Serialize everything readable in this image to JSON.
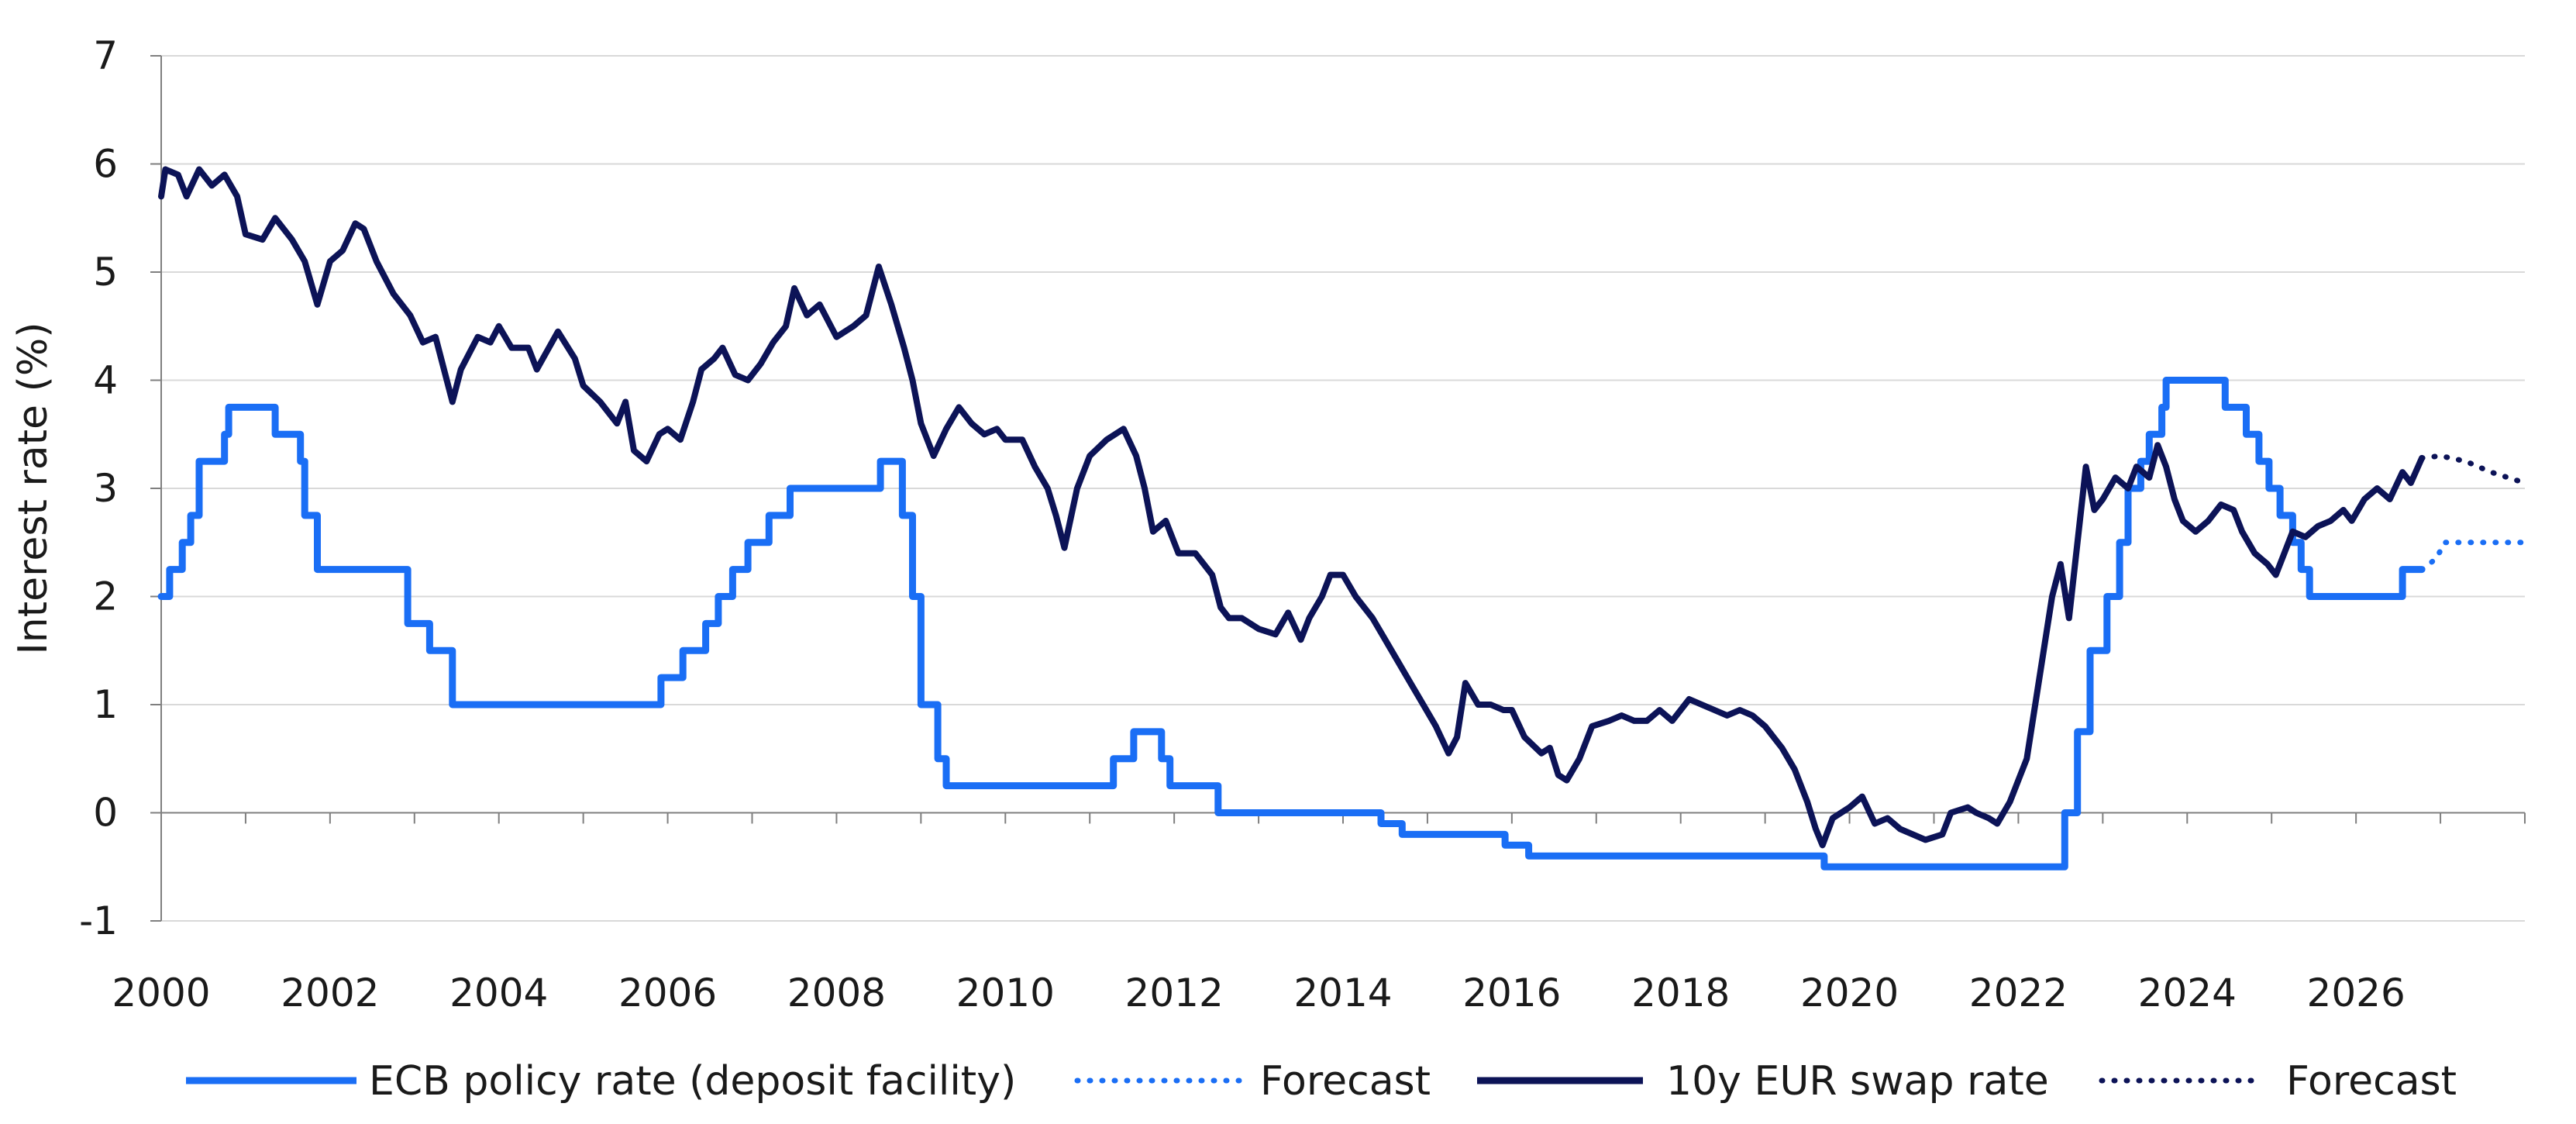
{
  "chart_data": {
    "type": "line",
    "title": "",
    "xlabel": "",
    "ylabel": "Interest rate (%)",
    "xlim": [
      2000,
      2028
    ],
    "ylim": [
      -1,
      7
    ],
    "x_ticks": [
      "2000",
      "2002",
      "2004",
      "2006",
      "2008",
      "2010",
      "2012",
      "2014",
      "2016",
      "2018",
      "2020",
      "2022",
      "2024",
      "2026"
    ],
    "y_ticks": [
      "-1",
      "0",
      "1",
      "2",
      "3",
      "4",
      "5",
      "6",
      "7"
    ],
    "grid": "horizontal",
    "legend_position": "bottom",
    "colors": {
      "ecb": "#1a6ef5",
      "swap": "#0c1357",
      "grid": "#d9d9d9",
      "axis": "#7f7f7f"
    },
    "series": [
      {
        "name": "ECB policy rate (deposit facility)",
        "style": "step",
        "points": [
          [
            2000.0,
            2.0
          ],
          [
            2000.1,
            2.25
          ],
          [
            2000.25,
            2.5
          ],
          [
            2000.35,
            2.75
          ],
          [
            2000.45,
            3.25
          ],
          [
            2000.75,
            3.5
          ],
          [
            2000.8,
            3.75
          ],
          [
            2001.35,
            3.5
          ],
          [
            2001.65,
            3.25
          ],
          [
            2001.7,
            2.75
          ],
          [
            2001.75,
            2.75
          ],
          [
            2001.85,
            2.25
          ],
          [
            2002.92,
            1.75
          ],
          [
            2003.18,
            1.5
          ],
          [
            2003.45,
            1.0
          ],
          [
            2005.92,
            1.25
          ],
          [
            2006.18,
            1.5
          ],
          [
            2006.45,
            1.75
          ],
          [
            2006.6,
            2.0
          ],
          [
            2006.77,
            2.25
          ],
          [
            2006.95,
            2.5
          ],
          [
            2007.2,
            2.75
          ],
          [
            2007.45,
            3.0
          ],
          [
            2008.52,
            3.25
          ],
          [
            2008.78,
            2.75
          ],
          [
            2008.9,
            2.0
          ],
          [
            2009.0,
            1.0
          ],
          [
            2009.2,
            0.5
          ],
          [
            2009.3,
            0.25
          ],
          [
            2011.28,
            0.5
          ],
          [
            2011.52,
            0.75
          ],
          [
            2011.85,
            0.5
          ],
          [
            2011.95,
            0.25
          ],
          [
            2012.52,
            0.0
          ],
          [
            2014.45,
            -0.1
          ],
          [
            2014.7,
            -0.2
          ],
          [
            2015.92,
            -0.3
          ],
          [
            2016.2,
            -0.4
          ],
          [
            2019.7,
            -0.5
          ],
          [
            2022.55,
            0.0
          ],
          [
            2022.7,
            0.75
          ],
          [
            2022.85,
            1.5
          ],
          [
            2023.05,
            2.0
          ],
          [
            2023.2,
            2.5
          ],
          [
            2023.3,
            3.0
          ],
          [
            2023.45,
            3.25
          ],
          [
            2023.55,
            3.5
          ],
          [
            2023.7,
            3.75
          ],
          [
            2023.75,
            4.0
          ],
          [
            2024.45,
            3.75
          ],
          [
            2024.7,
            3.5
          ],
          [
            2024.85,
            3.25
          ],
          [
            2024.97,
            3.0
          ],
          [
            2025.1,
            2.75
          ],
          [
            2025.25,
            2.5
          ],
          [
            2025.35,
            2.25
          ],
          [
            2025.45,
            2.0
          ],
          [
            2026.55,
            2.25
          ],
          [
            2026.78,
            2.25
          ]
        ]
      },
      {
        "name": "Forecast",
        "style": "dotted",
        "color_key": "ecb",
        "points": [
          [
            2026.78,
            2.25
          ],
          [
            2026.95,
            2.35
          ],
          [
            2027.05,
            2.5
          ],
          [
            2027.5,
            2.5
          ],
          [
            2028.0,
            2.5
          ]
        ]
      },
      {
        "name": "10y EUR swap rate",
        "style": "line",
        "points": [
          [
            2000.0,
            5.7
          ],
          [
            2000.05,
            5.95
          ],
          [
            2000.2,
            5.9
          ],
          [
            2000.3,
            5.7
          ],
          [
            2000.45,
            5.95
          ],
          [
            2000.6,
            5.8
          ],
          [
            2000.75,
            5.9
          ],
          [
            2000.9,
            5.7
          ],
          [
            2001.0,
            5.35
          ],
          [
            2001.2,
            5.3
          ],
          [
            2001.35,
            5.5
          ],
          [
            2001.55,
            5.3
          ],
          [
            2001.7,
            5.1
          ],
          [
            2001.85,
            4.7
          ],
          [
            2002.0,
            5.1
          ],
          [
            2002.15,
            5.2
          ],
          [
            2002.3,
            5.45
          ],
          [
            2002.4,
            5.4
          ],
          [
            2002.55,
            5.1
          ],
          [
            2002.75,
            4.8
          ],
          [
            2002.95,
            4.6
          ],
          [
            2003.1,
            4.35
          ],
          [
            2003.25,
            4.4
          ],
          [
            2003.45,
            3.8
          ],
          [
            2003.55,
            4.1
          ],
          [
            2003.75,
            4.4
          ],
          [
            2003.9,
            4.35
          ],
          [
            2004.0,
            4.5
          ],
          [
            2004.15,
            4.3
          ],
          [
            2004.35,
            4.3
          ],
          [
            2004.45,
            4.1
          ],
          [
            2004.7,
            4.45
          ],
          [
            2004.9,
            4.2
          ],
          [
            2005.0,
            3.95
          ],
          [
            2005.2,
            3.8
          ],
          [
            2005.4,
            3.6
          ],
          [
            2005.5,
            3.8
          ],
          [
            2005.6,
            3.35
          ],
          [
            2005.75,
            3.25
          ],
          [
            2005.9,
            3.5
          ],
          [
            2006.0,
            3.55
          ],
          [
            2006.15,
            3.45
          ],
          [
            2006.3,
            3.8
          ],
          [
            2006.4,
            4.1
          ],
          [
            2006.55,
            4.2
          ],
          [
            2006.65,
            4.3
          ],
          [
            2006.8,
            4.05
          ],
          [
            2006.95,
            4.0
          ],
          [
            2007.1,
            4.15
          ],
          [
            2007.25,
            4.35
          ],
          [
            2007.4,
            4.5
          ],
          [
            2007.5,
            4.85
          ],
          [
            2007.65,
            4.6
          ],
          [
            2007.8,
            4.7
          ],
          [
            2008.0,
            4.4
          ],
          [
            2008.2,
            4.5
          ],
          [
            2008.35,
            4.6
          ],
          [
            2008.5,
            5.05
          ],
          [
            2008.65,
            4.7
          ],
          [
            2008.8,
            4.3
          ],
          [
            2008.9,
            4.0
          ],
          [
            2009.0,
            3.6
          ],
          [
            2009.15,
            3.3
          ],
          [
            2009.3,
            3.55
          ],
          [
            2009.45,
            3.75
          ],
          [
            2009.6,
            3.6
          ],
          [
            2009.75,
            3.5
          ],
          [
            2009.9,
            3.55
          ],
          [
            2010.0,
            3.45
          ],
          [
            2010.2,
            3.45
          ],
          [
            2010.35,
            3.2
          ],
          [
            2010.5,
            3.0
          ],
          [
            2010.6,
            2.75
          ],
          [
            2010.7,
            2.45
          ],
          [
            2010.85,
            3.0
          ],
          [
            2011.0,
            3.3
          ],
          [
            2011.2,
            3.45
          ],
          [
            2011.4,
            3.55
          ],
          [
            2011.55,
            3.3
          ],
          [
            2011.65,
            3.0
          ],
          [
            2011.75,
            2.6
          ],
          [
            2011.9,
            2.7
          ],
          [
            2012.05,
            2.4
          ],
          [
            2012.25,
            2.4
          ],
          [
            2012.45,
            2.2
          ],
          [
            2012.55,
            1.9
          ],
          [
            2012.65,
            1.8
          ],
          [
            2012.8,
            1.8
          ],
          [
            2013.0,
            1.7
          ],
          [
            2013.2,
            1.65
          ],
          [
            2013.35,
            1.85
          ],
          [
            2013.5,
            1.6
          ],
          [
            2013.6,
            1.8
          ],
          [
            2013.75,
            2.0
          ],
          [
            2013.85,
            2.2
          ],
          [
            2014.0,
            2.2
          ],
          [
            2014.15,
            2.0
          ],
          [
            2014.35,
            1.8
          ],
          [
            2014.5,
            1.6
          ],
          [
            2014.65,
            1.4
          ],
          [
            2014.8,
            1.2
          ],
          [
            2014.95,
            1.0
          ],
          [
            2015.1,
            0.8
          ],
          [
            2015.25,
            0.55
          ],
          [
            2015.35,
            0.7
          ],
          [
            2015.45,
            1.2
          ],
          [
            2015.6,
            1.0
          ],
          [
            2015.75,
            1.0
          ],
          [
            2015.9,
            0.95
          ],
          [
            2016.0,
            0.95
          ],
          [
            2016.15,
            0.7
          ],
          [
            2016.35,
            0.55
          ],
          [
            2016.45,
            0.6
          ],
          [
            2016.55,
            0.35
          ],
          [
            2016.65,
            0.3
          ],
          [
            2016.8,
            0.5
          ],
          [
            2016.95,
            0.8
          ],
          [
            2017.15,
            0.85
          ],
          [
            2017.3,
            0.9
          ],
          [
            2017.45,
            0.85
          ],
          [
            2017.6,
            0.85
          ],
          [
            2017.75,
            0.95
          ],
          [
            2017.9,
            0.85
          ],
          [
            2018.1,
            1.05
          ],
          [
            2018.25,
            1.0
          ],
          [
            2018.4,
            0.95
          ],
          [
            2018.55,
            0.9
          ],
          [
            2018.7,
            0.95
          ],
          [
            2018.85,
            0.9
          ],
          [
            2019.0,
            0.8
          ],
          [
            2019.2,
            0.6
          ],
          [
            2019.35,
            0.4
          ],
          [
            2019.5,
            0.1
          ],
          [
            2019.6,
            -0.15
          ],
          [
            2019.68,
            -0.3
          ],
          [
            2019.8,
            -0.05
          ],
          [
            2020.0,
            0.05
          ],
          [
            2020.15,
            0.15
          ],
          [
            2020.3,
            -0.1
          ],
          [
            2020.45,
            -0.05
          ],
          [
            2020.6,
            -0.15
          ],
          [
            2020.75,
            -0.2
          ],
          [
            2020.9,
            -0.25
          ],
          [
            2021.1,
            -0.2
          ],
          [
            2021.2,
            0.0
          ],
          [
            2021.4,
            0.05
          ],
          [
            2021.5,
            0.0
          ],
          [
            2021.65,
            -0.05
          ],
          [
            2021.75,
            -0.1
          ],
          [
            2021.9,
            0.1
          ],
          [
            2022.0,
            0.3
          ],
          [
            2022.1,
            0.5
          ],
          [
            2022.2,
            1.0
          ],
          [
            2022.3,
            1.5
          ],
          [
            2022.4,
            2.0
          ],
          [
            2022.5,
            2.3
          ],
          [
            2022.6,
            1.8
          ],
          [
            2022.7,
            2.5
          ],
          [
            2022.8,
            3.2
          ],
          [
            2022.9,
            2.8
          ],
          [
            2023.0,
            2.9
          ],
          [
            2023.15,
            3.1
          ],
          [
            2023.3,
            3.0
          ],
          [
            2023.4,
            3.2
          ],
          [
            2023.55,
            3.1
          ],
          [
            2023.65,
            3.4
          ],
          [
            2023.75,
            3.2
          ],
          [
            2023.85,
            2.9
          ],
          [
            2023.95,
            2.7
          ],
          [
            2024.1,
            2.6
          ],
          [
            2024.25,
            2.7
          ],
          [
            2024.4,
            2.85
          ],
          [
            2024.55,
            2.8
          ],
          [
            2024.65,
            2.6
          ],
          [
            2024.8,
            2.4
          ],
          [
            2024.95,
            2.3
          ],
          [
            2025.05,
            2.2
          ],
          [
            2025.15,
            2.4
          ],
          [
            2025.25,
            2.6
          ],
          [
            2025.4,
            2.55
          ],
          [
            2025.55,
            2.65
          ],
          [
            2025.7,
            2.7
          ],
          [
            2025.85,
            2.8
          ],
          [
            2025.95,
            2.7
          ],
          [
            2026.1,
            2.9
          ],
          [
            2026.25,
            3.0
          ],
          [
            2026.4,
            2.9
          ],
          [
            2026.55,
            3.15
          ],
          [
            2026.65,
            3.05
          ],
          [
            2026.78,
            3.28
          ]
        ]
      },
      {
        "name": "Forecast",
        "style": "dotted",
        "color_key": "swap",
        "points": [
          [
            2026.78,
            3.28
          ],
          [
            2027.0,
            3.3
          ],
          [
            2027.3,
            3.25
          ],
          [
            2027.6,
            3.15
          ],
          [
            2028.0,
            3.05
          ]
        ]
      }
    ]
  }
}
